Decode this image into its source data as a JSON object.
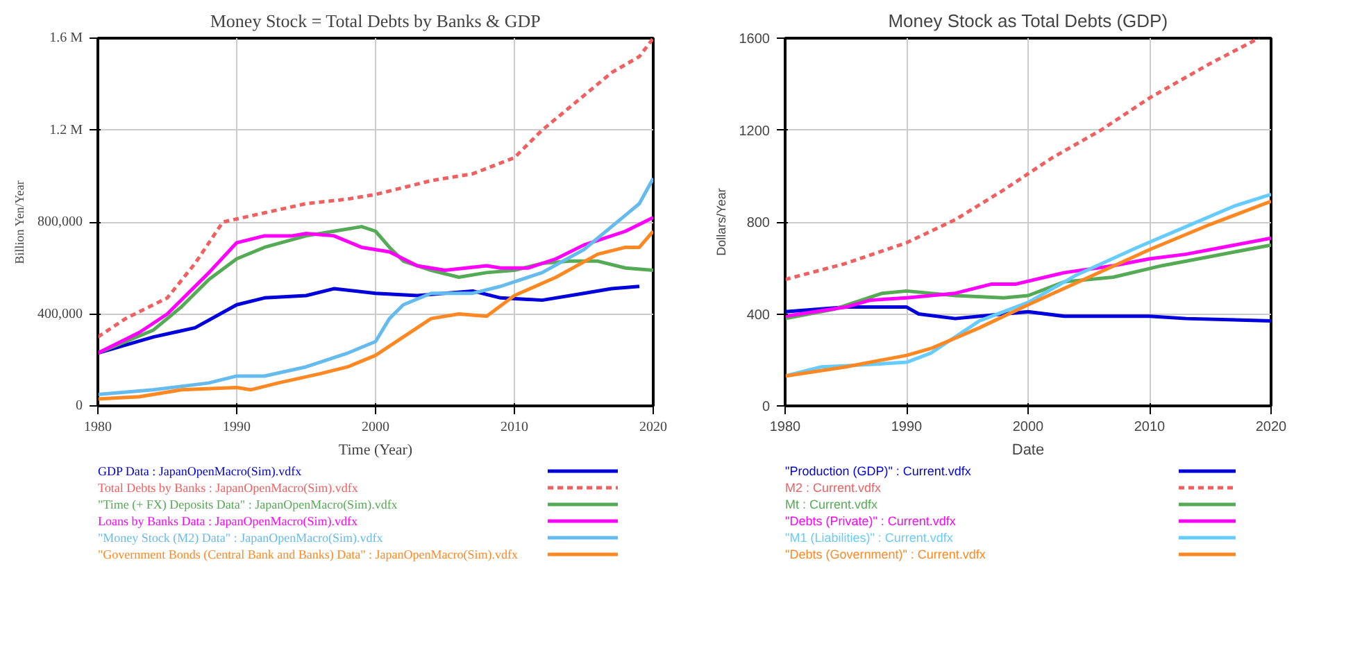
{
  "chart_data": [
    {
      "type": "line",
      "title": "Money Stock = Total Debts by Banks & GDP",
      "xlabel": "Time (Year)",
      "ylabel": "Billion Yen/Year",
      "xlim": [
        1980,
        2020
      ],
      "xticks": [
        1980,
        1990,
        2000,
        2010,
        2020
      ],
      "ylim": [
        0,
        1600000
      ],
      "yticks": [
        0,
        {
          "value": 400000,
          "label": "400,000"
        },
        {
          "value": 800000,
          "label": "800,000"
        },
        {
          "value": 1200000,
          "label": "1.2 M"
        },
        {
          "value": 1600000,
          "label": "1.6 M"
        }
      ],
      "grid": true,
      "legend": "bottom",
      "series": [
        {
          "name": "GDP Data : JapanOpenMacro(Sim).vdfx",
          "color": "#0000dd",
          "x": [
            1980,
            1984,
            1987,
            1990,
            1992,
            1995,
            1997,
            2000,
            2003,
            2007,
            2009,
            2012,
            2015,
            2017,
            2019
          ],
          "values": [
            230000,
            300000,
            340000,
            440000,
            470000,
            480000,
            510000,
            490000,
            480000,
            500000,
            470000,
            460000,
            490000,
            510000,
            520000
          ]
        },
        {
          "name": "Total Debts by Banks : JapanOpenMacro(Sim).vdfx",
          "color": "#f06060",
          "line_style": "dashed",
          "x": [
            1980,
            1982,
            1985,
            1987,
            1989,
            1992,
            1995,
            1998,
            2000,
            2002,
            2004,
            2007,
            2010,
            2012,
            2015,
            2017,
            2019,
            2020
          ],
          "values": [
            300000,
            380000,
            470000,
            620000,
            800000,
            840000,
            880000,
            900000,
            920000,
            950000,
            980000,
            1010000,
            1080000,
            1200000,
            1350000,
            1450000,
            1520000,
            1600000
          ]
        },
        {
          "name": "\"Time (+ FX) Deposits Data\" : JapanOpenMacro(Sim).vdfx",
          "color": "#55aa55",
          "x": [
            1980,
            1984,
            1986,
            1988,
            1990,
            1992,
            1995,
            1997,
            1999,
            2000,
            2001,
            2002,
            2004,
            2006,
            2008,
            2010,
            2012,
            2014,
            2016,
            2018,
            2020
          ],
          "values": [
            230000,
            330000,
            430000,
            550000,
            640000,
            690000,
            740000,
            760000,
            780000,
            760000,
            690000,
            630000,
            590000,
            560000,
            580000,
            590000,
            620000,
            630000,
            630000,
            600000,
            590000
          ]
        },
        {
          "name": "Loans by Banks Data : JapanOpenMacro(Sim).vdfx",
          "color": "#ff00ff",
          "x": [
            1980,
            1983,
            1985,
            1988,
            1990,
            1992,
            1994,
            1995,
            1997,
            1999,
            2001,
            2003,
            2005,
            2008,
            2009,
            2011,
            2013,
            2015,
            2018,
            2020
          ],
          "values": [
            230000,
            320000,
            400000,
            580000,
            710000,
            740000,
            740000,
            750000,
            740000,
            690000,
            670000,
            610000,
            590000,
            610000,
            600000,
            600000,
            640000,
            700000,
            760000,
            820000
          ]
        },
        {
          "name": "\"Money Stock (M2) Data\" : JapanOpenMacro(Sim).vdfx",
          "color": "#66bbee",
          "x": [
            1980,
            1984,
            1988,
            1990,
            1992,
            1995,
            1998,
            2000,
            2001,
            2002,
            2004,
            2007,
            2009,
            2012,
            2015,
            2018,
            2019,
            2020
          ],
          "values": [
            50000,
            70000,
            100000,
            130000,
            130000,
            170000,
            230000,
            280000,
            380000,
            440000,
            490000,
            490000,
            520000,
            580000,
            680000,
            830000,
            880000,
            990000
          ]
        },
        {
          "name": "\"Government Bonds (Central Bank and Banks) Data\" : JapanOpenMacro(Sim).vdfx",
          "color": "#ff8822",
          "x": [
            1980,
            1983,
            1986,
            1990,
            1991,
            1993,
            1996,
            1998,
            2000,
            2002,
            2004,
            2006,
            2008,
            2010,
            2013,
            2016,
            2018,
            2019,
            2020
          ],
          "values": [
            30000,
            40000,
            70000,
            80000,
            70000,
            100000,
            140000,
            170000,
            220000,
            300000,
            380000,
            400000,
            390000,
            480000,
            560000,
            660000,
            690000,
            690000,
            760000
          ]
        }
      ]
    },
    {
      "type": "line",
      "title": "Money Stock as Total Debts (GDP)",
      "xlabel": "Date",
      "ylabel": "Dollars/Year",
      "xlim": [
        1980,
        2020
      ],
      "xticks": [
        1980,
        1990,
        2000,
        2010,
        2020
      ],
      "ylim": [
        0,
        1600
      ],
      "yticks": [
        0,
        400,
        800,
        1200,
        1600
      ],
      "grid": true,
      "legend": "bottom",
      "series": [
        {
          "name": "\"Production (GDP)\" : Current.vdfx",
          "color": "#0000dd",
          "x": [
            1980,
            1985,
            1990,
            1991,
            1994,
            1996,
            2000,
            2003,
            2010,
            2013,
            2020
          ],
          "values": [
            410,
            430,
            430,
            400,
            380,
            390,
            410,
            390,
            390,
            380,
            370
          ]
        },
        {
          "name": "M2 : Current.vdfx",
          "color": "#f06060",
          "line_style": "dashed",
          "x": [
            1980,
            1985,
            1990,
            1994,
            1998,
            2002,
            2006,
            2010,
            2015,
            2019
          ],
          "values": [
            550,
            620,
            710,
            810,
            940,
            1080,
            1200,
            1340,
            1490,
            1600
          ]
        },
        {
          "name": "Mt : Current.vdfx",
          "color": "#55aa55",
          "x": [
            1980,
            1984,
            1988,
            1990,
            1994,
            1998,
            2000,
            2003,
            2007,
            2011,
            2015,
            2020
          ],
          "values": [
            380,
            420,
            490,
            500,
            480,
            470,
            480,
            540,
            560,
            610,
            650,
            700
          ]
        },
        {
          "name": "\"Debts (Private)\" : Current.vdfx",
          "color": "#ff00ff",
          "x": [
            1980,
            1985,
            1987,
            1990,
            1994,
            1997,
            1999,
            2003,
            2007,
            2010,
            2013,
            2020
          ],
          "values": [
            390,
            430,
            460,
            470,
            490,
            530,
            530,
            580,
            610,
            640,
            660,
            730
          ]
        },
        {
          "name": "\"M1 (Liabilities)\" : Current.vdfx",
          "color": "#66ccff",
          "x": [
            1980,
            1983,
            1987,
            1990,
            1992,
            1996,
            2000,
            2004,
            2009,
            2013,
            2017,
            2020
          ],
          "values": [
            130,
            170,
            180,
            190,
            230,
            370,
            450,
            570,
            690,
            780,
            870,
            920
          ]
        },
        {
          "name": "\"Debts (Government)\" : Current.vdfx",
          "color": "#ff8822",
          "x": [
            1980,
            1985,
            1990,
            1992,
            1996,
            2000,
            2005,
            2010,
            2015,
            2020
          ],
          "values": [
            130,
            170,
            220,
            250,
            340,
            440,
            560,
            680,
            790,
            890
          ]
        }
      ]
    }
  ]
}
